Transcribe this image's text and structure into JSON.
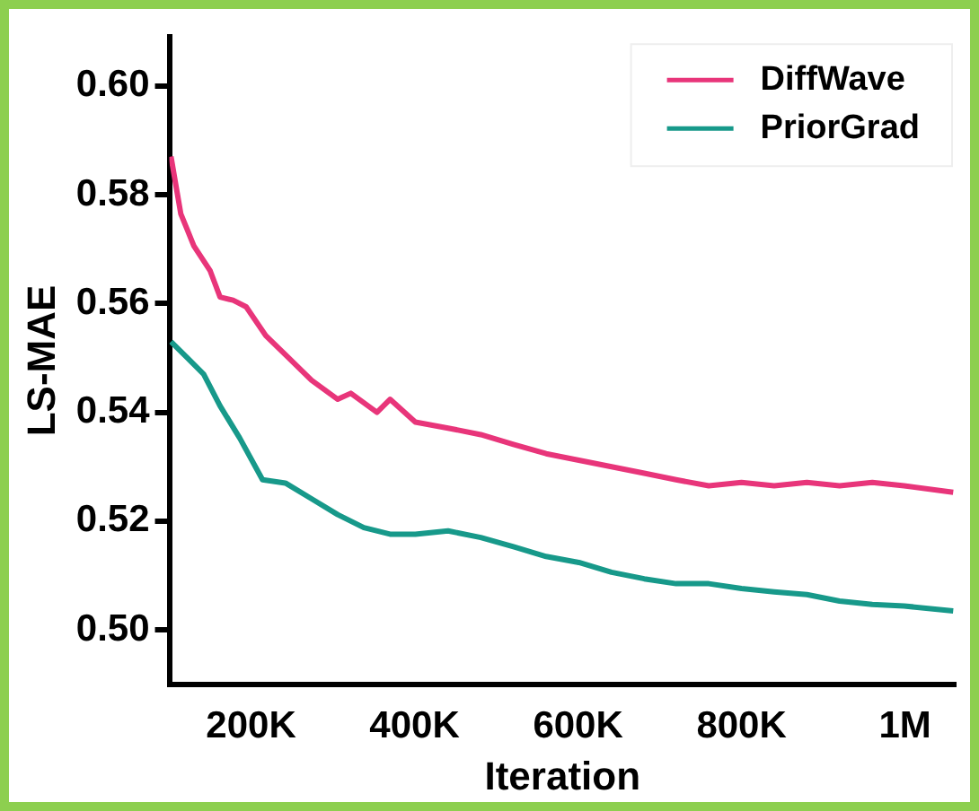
{
  "chart_data": {
    "type": "line",
    "xlabel": "Iteration",
    "ylabel": "LS-MAE",
    "xlim": [
      100000,
      1062000
    ],
    "ylim": [
      0.49,
      0.609
    ],
    "xticks": [
      {
        "value": 200000,
        "label": "200K"
      },
      {
        "value": 400000,
        "label": "400K"
      },
      {
        "value": 600000,
        "label": "600K"
      },
      {
        "value": 800000,
        "label": "800K"
      },
      {
        "value": 1000000,
        "label": "1M"
      }
    ],
    "yticks": [
      {
        "value": 0.5,
        "label": "0.50"
      },
      0.52,
      0.54,
      0.56,
      0.58,
      {
        "value": 0.6,
        "label": "0.60"
      }
    ],
    "grid": false,
    "legend": "top right",
    "marker": "none",
    "line_style": "solid",
    "series": [
      {
        "name": "DiffWave",
        "color": "#e8357a",
        "x": [
          102000,
          114000,
          130000,
          150000,
          162000,
          178000,
          194000,
          218000,
          242000,
          274000,
          306000,
          322000,
          354000,
          370000,
          401000,
          441000,
          481000,
          521000,
          561000,
          601000,
          641000,
          681000,
          720000,
          760000,
          800000,
          840000,
          880000,
          920000,
          960000,
          999000,
          1059000
        ],
        "values": [
          0.587,
          0.5765,
          0.5706,
          0.566,
          0.5612,
          0.5606,
          0.5594,
          0.5541,
          0.5506,
          0.5459,
          0.5424,
          0.5435,
          0.54,
          0.5424,
          0.5382,
          0.5371,
          0.5359,
          0.5341,
          0.5324,
          0.5312,
          0.53,
          0.5288,
          0.5276,
          0.5265,
          0.5271,
          0.5265,
          0.5271,
          0.5265,
          0.5271,
          0.5265,
          0.5253
        ]
      },
      {
        "name": "PriorGrad",
        "color": "#17998a",
        "x": [
          102000,
          122000,
          142000,
          162000,
          186000,
          214000,
          242000,
          274000,
          306000,
          338000,
          370000,
          401000,
          441000,
          481000,
          521000,
          561000,
          601000,
          641000,
          681000,
          720000,
          760000,
          800000,
          840000,
          880000,
          920000,
          960000,
          999000,
          1059000
        ],
        "values": [
          0.553,
          0.55,
          0.547,
          0.5412,
          0.5353,
          0.5276,
          0.527,
          0.5241,
          0.5212,
          0.5188,
          0.5176,
          0.5176,
          0.5182,
          0.517,
          0.5153,
          0.5135,
          0.5124,
          0.5106,
          0.5094,
          0.5085,
          0.5085,
          0.5076,
          0.507,
          0.5065,
          0.5053,
          0.5047,
          0.5044,
          0.5035
        ]
      }
    ]
  }
}
